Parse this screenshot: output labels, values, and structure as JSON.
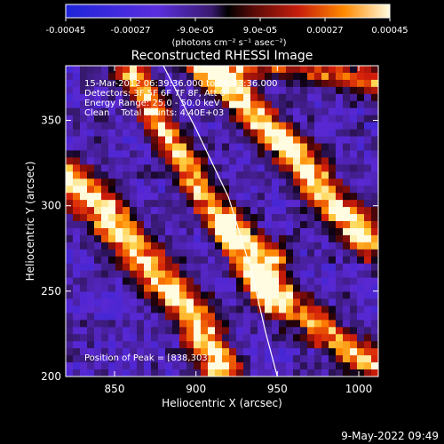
{
  "chart_data": {
    "type": "heatmap",
    "title": "Reconstructed RHESSI Image",
    "xlabel": "Heliocentric X (arcsec)",
    "ylabel": "Heliocentric Y (arcsec)",
    "xlim": [
      820,
      1012
    ],
    "ylim": [
      200,
      382
    ],
    "x_ticks": [
      850,
      900,
      950,
      1000
    ],
    "y_ticks": [
      200,
      250,
      300,
      350
    ],
    "colorbar": {
      "min": -0.00045,
      "max": 0.00045,
      "tick_labels": [
        "-0.00045",
        "-0.00027",
        "-9.0e-05",
        "9.0e-05",
        "0.00027",
        "0.00045"
      ],
      "unit_label": "(photons cm⁻² s⁻¹ asec⁻²)"
    },
    "annotations": {
      "time_range": "15-Mar-2012 06:39:36.000 to 06:43:36.000",
      "detectors": "Detectors: 3F 5F 6F 7F 8F, Att 0",
      "energy_range": "Energy Range: 25.0 - 50.0 keV",
      "clean": "Clean    Total counts: 4.40E+03",
      "peak": "Position of Peak = [838,303]"
    },
    "peak_position": [
      838,
      303
    ],
    "limb": [
      [
        880,
        382
      ],
      [
        900,
        345
      ],
      [
        920,
        305
      ],
      [
        934,
        262
      ],
      [
        943,
        225
      ],
      [
        950,
        200
      ]
    ],
    "colors": {
      "background": "#000000",
      "text": "#ffffff"
    }
  },
  "footer": {
    "timestamp": "9-May-2022 09:49"
  }
}
